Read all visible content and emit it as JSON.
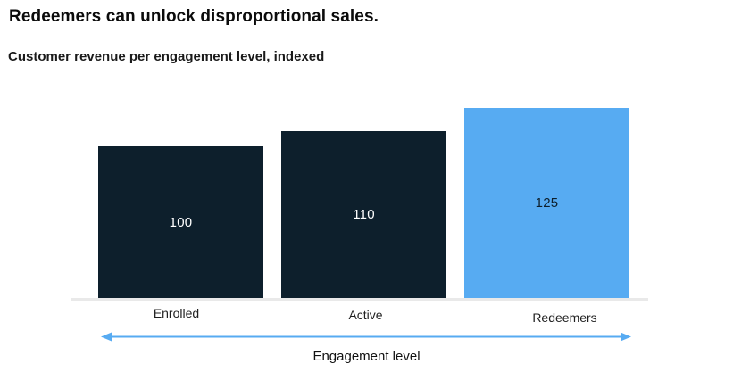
{
  "header": {
    "title": "Redeemers can unlock disproportional sales.",
    "subtitle": "Customer revenue per engagement level, indexed"
  },
  "chart_data": {
    "type": "bar",
    "title": "Redeemers can unlock disproportional sales.",
    "subtitle": "Customer revenue per engagement level, indexed",
    "categories": [
      "Enrolled",
      "Active",
      "Redeemers"
    ],
    "values": [
      100,
      110,
      125
    ],
    "xlabel": "Engagement level",
    "ylabel": "",
    "ylim": [
      0,
      135
    ],
    "grid": false,
    "legend": false,
    "annotations": [],
    "colors": {
      "bar_fills": [
        "#0d1f2c",
        "#0d1f2c",
        "#57abf2"
      ],
      "value_label_colors": [
        "#ffffff",
        "#ffffff",
        "#0d1f2c"
      ],
      "axis_line": "#e9e9e9",
      "arrow": "#57abf2",
      "text": "#1f1f1f"
    },
    "highlight_category": "Redeemers"
  }
}
